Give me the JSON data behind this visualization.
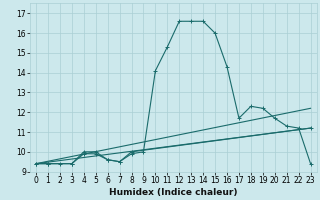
{
  "xlabel": "Humidex (Indice chaleur)",
  "bg_color": "#cce8ec",
  "grid_color": "#aacfd4",
  "line_color": "#1a6b6b",
  "xlim": [
    -0.5,
    23.5
  ],
  "ylim": [
    9,
    17.5
  ],
  "yticks": [
    9,
    10,
    11,
    12,
    13,
    14,
    15,
    16,
    17
  ],
  "xticks": [
    0,
    1,
    2,
    3,
    4,
    5,
    6,
    7,
    8,
    9,
    10,
    11,
    12,
    13,
    14,
    15,
    16,
    17,
    18,
    19,
    20,
    21,
    22,
    23
  ],
  "xtick_labels": [
    "0",
    "1",
    "2",
    "3",
    "4",
    "5",
    "6",
    "7",
    "8",
    "9",
    "10",
    "11",
    "12",
    "13",
    "14",
    "15",
    "16",
    "17",
    "18",
    "19",
    "20",
    "21",
    "22",
    "23"
  ],
  "series_main": {
    "x": [
      0,
      1,
      2,
      3,
      4,
      5,
      6,
      7,
      8,
      9,
      10,
      11,
      12,
      13,
      14,
      15,
      16,
      17,
      18,
      19,
      20,
      21,
      22,
      23
    ],
    "y": [
      9.4,
      9.4,
      9.4,
      9.4,
      9.9,
      9.9,
      9.6,
      9.5,
      9.9,
      10.0,
      14.1,
      15.3,
      16.6,
      16.6,
      16.6,
      16.0,
      14.3,
      11.7,
      12.3,
      12.2,
      11.7,
      11.3,
      11.2,
      9.4
    ]
  },
  "series_lower1": {
    "x": [
      0,
      1,
      3,
      4,
      5,
      6,
      7,
      8,
      23
    ],
    "y": [
      9.4,
      9.4,
      9.4,
      10.0,
      10.0,
      9.6,
      9.5,
      10.0,
      11.2
    ]
  },
  "series_straight1": {
    "x": [
      0,
      23
    ],
    "y": [
      9.4,
      11.2
    ]
  },
  "series_straight2": {
    "x": [
      0,
      23
    ],
    "y": [
      9.4,
      12.2
    ]
  },
  "xlabel_fontsize": 6.5,
  "tick_fontsize": 5.5
}
